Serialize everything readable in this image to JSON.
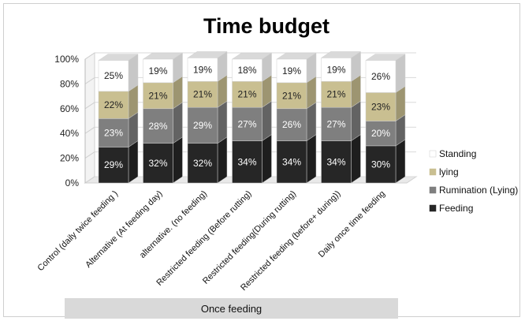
{
  "chart_data": {
    "type": "bar",
    "stacked": true,
    "percent": true,
    "three_d": true,
    "title": "Time budget",
    "categories": [
      "Control (daily twice feeding )",
      "Alternative (At feeding day)",
      "alternative.  (no feeding)",
      "Restricted feeding (Before rutting)",
      "Restricted feeding(During rutting)",
      "Restricted feeding (before+ during))",
      "Daily once time feeding"
    ],
    "series": [
      {
        "name": "Feeding",
        "values": [
          29,
          32,
          32,
          34,
          34,
          34,
          30
        ],
        "color": "#262626"
      },
      {
        "name": "Rumination (Lying)",
        "values": [
          23,
          28,
          29,
          27,
          26,
          27,
          20
        ],
        "color": "#7f7f7f"
      },
      {
        "name": "lying",
        "values": [
          22,
          21,
          21,
          21,
          21,
          21,
          23
        ],
        "color": "#c9bf91"
      },
      {
        "name": "Standing",
        "values": [
          25,
          19,
          19,
          18,
          19,
          19,
          26
        ],
        "color": "#ffffff"
      }
    ],
    "data_label_suffix": "%",
    "y_ticks": [
      "0%",
      "20%",
      "40%",
      "60%",
      "80%",
      "100%"
    ],
    "ylim": [
      0,
      100
    ],
    "legend_position": "right",
    "group_label": "Once feeding"
  }
}
